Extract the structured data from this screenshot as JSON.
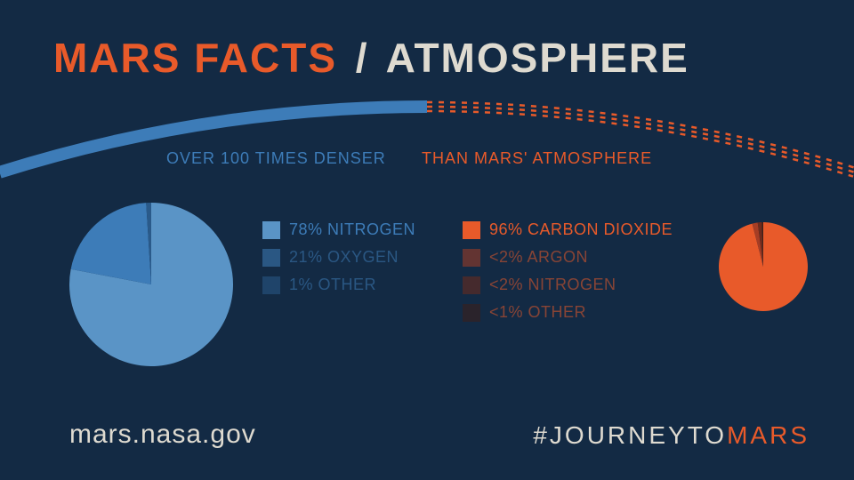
{
  "background_color": "#132a44",
  "title": {
    "primary": "MARS FACTS",
    "slash": "/",
    "secondary": "ATMOSPHERE",
    "primary_color": "#e85a2a",
    "secondary_color": "#dedad0",
    "fontsize": 46
  },
  "arc": {
    "solid_color": "#3d7cb8",
    "dashed_color": "#e85a2a",
    "stroke_width": 14,
    "dash_stroke_width": 2.5,
    "dash_pattern": "6 7"
  },
  "density": {
    "left_text": "OVER 100 TIMES DENSER",
    "right_text": "THAN MARS' ATMOSPHERE",
    "left_color": "#3d7cb8",
    "right_color": "#e85a2a",
    "fontsize": 18
  },
  "earth_pie": {
    "type": "pie",
    "radius": 92,
    "slices": [
      {
        "label": "78% NITROGEN",
        "value": 78,
        "color": "#5a94c6"
      },
      {
        "label": "21% OXYGEN",
        "value": 21,
        "color": "#3d7cb8"
      },
      {
        "label": "1% OTHER",
        "value": 1,
        "color": "#2a5a8a"
      }
    ],
    "legend_color": "#3d7cb8"
  },
  "mars_pie": {
    "type": "pie",
    "radius": 50,
    "slices": [
      {
        "label": "96% CARBON DIOXIDE",
        "value": 96,
        "color": "#e85a2a"
      },
      {
        "label": "<2% ARGON",
        "value": 2,
        "color": "#a63d24"
      },
      {
        "label": "<2% NITROGEN",
        "value": 1.5,
        "color": "#6f2b1c"
      },
      {
        "label": "<1% OTHER",
        "value": 0.5,
        "color": "#3d1f18"
      }
    ],
    "legend_color": "#e85a2a"
  },
  "footer": {
    "url": "mars.nasa.gov",
    "hashtag_prefix": "#JOURNEYTO",
    "hashtag_suffix": "MARS",
    "url_color": "#dedad0",
    "prefix_color": "#dedad0",
    "suffix_color": "#e85a2a"
  }
}
